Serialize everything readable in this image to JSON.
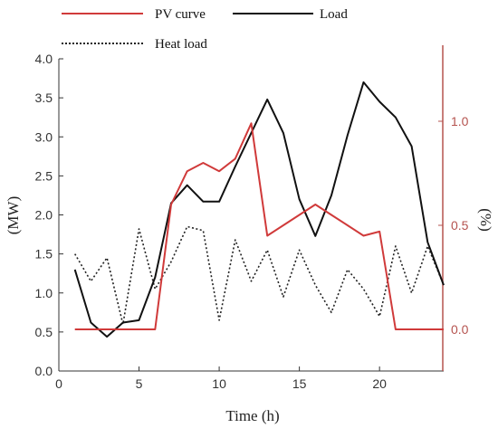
{
  "chart_data": {
    "type": "line",
    "title": "",
    "xlabel": "Time (h)",
    "ylabel": "(MW)",
    "y2label": "(%)",
    "xlim": [
      0,
      24
    ],
    "ylim": [
      0,
      4.0
    ],
    "y2lim": [
      -0.2,
      1.3
    ],
    "xticks": [
      "0",
      "5",
      "10",
      "15",
      "20"
    ],
    "yticks": [
      "0.0",
      "0.5",
      "1.0",
      "1.5",
      "2.0",
      "2.5",
      "3.0",
      "3.5",
      "4.0"
    ],
    "y2ticks": [
      "0.0",
      "0.5",
      "1.0"
    ],
    "grid": false,
    "legend_position": "top",
    "x": [
      1,
      2,
      3,
      4,
      5,
      6,
      7,
      8,
      9,
      10,
      11,
      12,
      13,
      14,
      15,
      16,
      17,
      18,
      19,
      20,
      21,
      22,
      23,
      24
    ],
    "series": [
      {
        "name": "PV curve",
        "axis": "right",
        "color": "#d03a3a",
        "style": "solid",
        "values": [
          0,
          0,
          0,
          0,
          0,
          0,
          0.6,
          0.76,
          0.8,
          0.76,
          0.82,
          0.99,
          0.45,
          0.5,
          0.55,
          0.6,
          0.55,
          0.5,
          0.45,
          0.47,
          0,
          0,
          0,
          0
        ]
      },
      {
        "name": "Load",
        "axis": "left",
        "color": "#111111",
        "style": "solid",
        "values": [
          1.3,
          0.62,
          0.44,
          0.62,
          0.65,
          1.2,
          2.15,
          2.38,
          2.17,
          2.17,
          2.62,
          3.05,
          3.48,
          3.05,
          2.2,
          1.73,
          2.25,
          3.02,
          3.7,
          3.45,
          3.25,
          2.88,
          1.65,
          1.1
        ]
      },
      {
        "name": "Heat load",
        "axis": "left",
        "color": "#222222",
        "style": "dotted",
        "values": [
          1.5,
          1.15,
          1.45,
          0.6,
          1.82,
          1.05,
          1.4,
          1.85,
          1.8,
          0.65,
          1.68,
          1.15,
          1.55,
          0.95,
          1.55,
          1.1,
          0.75,
          1.3,
          1.05,
          0.7,
          1.6,
          1.0,
          1.6,
          1.1
        ]
      }
    ]
  }
}
